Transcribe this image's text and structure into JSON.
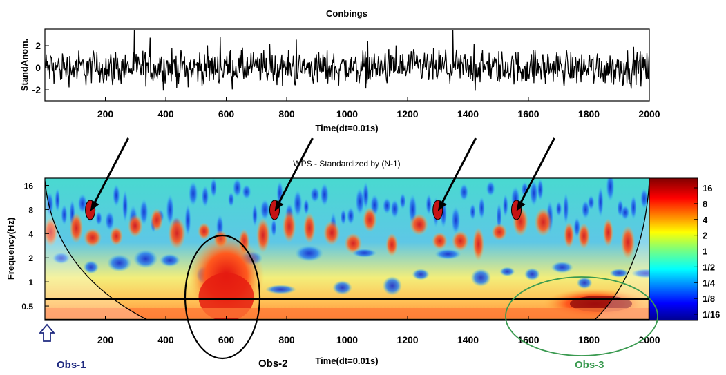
{
  "chart_data": [
    {
      "type": "line",
      "title": "Conbings",
      "xlabel": "Time(dt=0.01s)",
      "ylabel": "StandAnom.",
      "xlim": [
        0,
        2000
      ],
      "ylim": [
        -3,
        3.5
      ],
      "x_ticks": [
        "200",
        "400",
        "600",
        "800",
        "1000",
        "1200",
        "1400",
        "1600",
        "1800",
        "2000"
      ],
      "y_ticks": [
        "2",
        "0",
        "-2"
      ],
      "grid": false,
      "series": [
        {
          "values": "standardized anomaly noise series, 2000 samples, mostly within -2..2 with spikes to about +3.2 and -3.2",
          "color": "#000000"
        }
      ]
    },
    {
      "type": "heatmap",
      "title": "WPS - Standardized by (N-1)",
      "xlabel": "Time(dt=0.01s)",
      "ylabel": "Frequency(Hz)",
      "xlim": [
        0,
        2000
      ],
      "y_scale": "log2",
      "y_ticks": [
        "16",
        "8",
        "4",
        "2",
        "1",
        "0.5"
      ],
      "x_ticks": [
        "200",
        "400",
        "600",
        "800",
        "1000",
        "1200",
        "1400",
        "1600",
        "1800",
        "2000"
      ],
      "colorbar_ticks": [
        "16",
        "8",
        "4",
        "2",
        "1",
        "1/2",
        "1/4",
        "1/8",
        "1/16"
      ],
      "colormap": "jet",
      "colors": {
        "low": "#00008f",
        "mid": "#7dff7a",
        "high": "#800000"
      },
      "cone_of_influence": true,
      "annotations": [
        {
          "label": "Obs-1",
          "color": "#1f2a80",
          "shape": "arrow-up",
          "x": 0
        },
        {
          "label": "Obs-2",
          "color": "#000000",
          "shape": "ellipse",
          "x": 600
        },
        {
          "label": "Obs-3",
          "color": "#3a9a50",
          "shape": "ellipse",
          "x": 1800
        }
      ],
      "arrows_at_x": [
        150,
        760,
        1300,
        1560
      ]
    }
  ]
}
